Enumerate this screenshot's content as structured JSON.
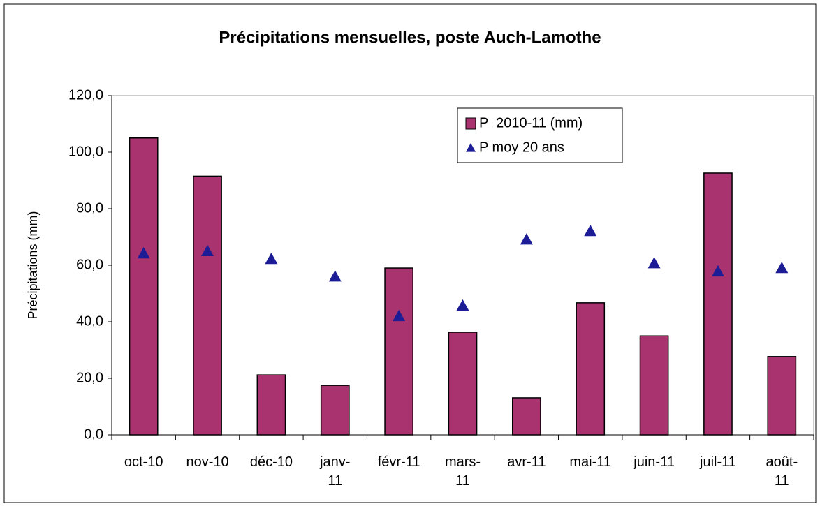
{
  "chart_data": {
    "type": "bar",
    "title": "Précipitations mensuelles, poste Auch-Lamothe",
    "y_label": "Précipitations (mm)",
    "categories": [
      "oct-10",
      "nov-10",
      "déc-10",
      "janv-\n11",
      "févr-11",
      "mars-\n11",
      "avr-11",
      "mai-11",
      "juin-11",
      "juil-11",
      "août-\n11"
    ],
    "series": [
      {
        "name": "P  2010-11 (mm)",
        "type": "bar",
        "color": "#a8336f",
        "values": [
          105,
          91.5,
          21.2,
          17.5,
          59,
          36.3,
          13.1,
          46.7,
          35,
          92.6,
          27.7
        ]
      },
      {
        "name": "P moy 20 ans",
        "type": "scatter",
        "color": "#1c1c96",
        "values": [
          64.2,
          65,
          62.2,
          56,
          42,
          45.7,
          69.1,
          72.1,
          60.7,
          57.8,
          59
        ]
      }
    ],
    "ylim": [
      0,
      120
    ],
    "yticks": [
      {
        "value": 0,
        "label": "0,0"
      },
      {
        "value": 20,
        "label": "20,0"
      },
      {
        "value": 40,
        "label": "40,0"
      },
      {
        "value": 60,
        "label": "60,0"
      },
      {
        "value": 80,
        "label": "80,0"
      },
      {
        "value": 100,
        "label": "100,0"
      },
      {
        "value": 120,
        "label": "120,0"
      }
    ],
    "legend": "top-right"
  }
}
